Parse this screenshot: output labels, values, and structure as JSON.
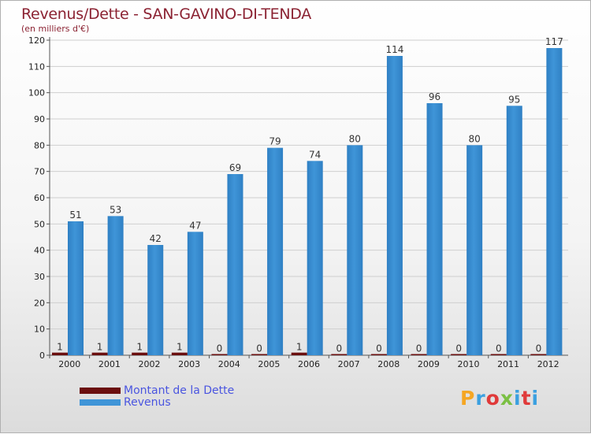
{
  "header": {
    "title": "Revenus/Dette - SAN-GAVINO-DI-TENDA",
    "subtitle": "(en milliers d'€)"
  },
  "logo": {
    "letters": [
      "P",
      "r",
      "o",
      "x",
      "i",
      "t",
      "i"
    ],
    "colors": [
      "#f5a623",
      "#3ba0e0",
      "#e03a3a",
      "#7bc043",
      "#3ba0e0",
      "#e03a3a",
      "#3ba0e0"
    ]
  },
  "colors": {
    "dette": "#6b0f0f",
    "revenus": "#3f95d8",
    "axis_text": "#222222",
    "grid": "#cfcfcf"
  },
  "chart_data": {
    "type": "bar",
    "categories": [
      "2000",
      "2001",
      "2002",
      "2003",
      "2004",
      "2005",
      "2006",
      "2007",
      "2008",
      "2009",
      "2010",
      "2011",
      "2012"
    ],
    "series": [
      {
        "name": "Montant de la Dette",
        "values": [
          1,
          1,
          1,
          1,
          0,
          0,
          1,
          0,
          0,
          0,
          0,
          0,
          0
        ]
      },
      {
        "name": "Revenus",
        "values": [
          51,
          53,
          42,
          47,
          69,
          79,
          74,
          80,
          114,
          96,
          80,
          95,
          117
        ]
      }
    ],
    "ylim": [
      0,
      120
    ],
    "yticks": [
      0,
      10,
      20,
      30,
      40,
      50,
      60,
      70,
      80,
      90,
      100,
      110,
      120
    ],
    "grid": true,
    "legend": "bottom-left"
  }
}
